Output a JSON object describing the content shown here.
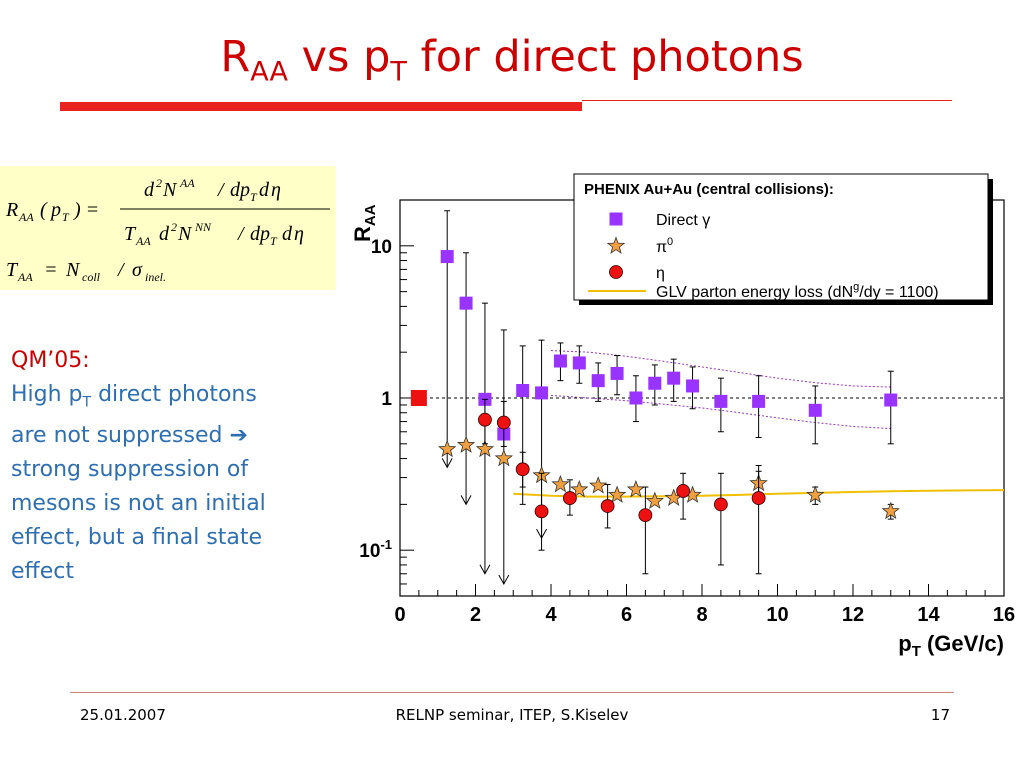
{
  "slide": {
    "title_main": "R",
    "title_sub1": "AA",
    "title_mid": " vs p",
    "title_sub2": "T",
    "title_end": " for direct photons"
  },
  "body_text": {
    "qm_label": "QM’05:",
    "line1_a": "High p",
    "line1_sub": "T",
    "line1_b": " direct photons",
    "line2": "are not suppressed ➔",
    "line3": "strong suppression of",
    "line4": "mesons is not an initial",
    "line5": "effect, but a final state",
    "line6": "effect"
  },
  "footer": {
    "date": "25.01.2007",
    "center": "RELNP seminar,  ITEP,  S.Kiselev",
    "page": "17"
  },
  "colors": {
    "title": "#cc0000",
    "body_text": "#2e6fb2",
    "direct_gamma": "#9933ff",
    "pi0": "#f0a040",
    "eta": "#ee1111",
    "glv": "#f0c000",
    "band": "#9933cc"
  },
  "chart_data": {
    "type": "scatter",
    "xlabel": "p",
    "xlabel_sub": "T",
    "xlabel_unit": " (GeV/c)",
    "ylabel": "R",
    "ylabel_sub": "AA",
    "xlim": [
      0,
      16
    ],
    "ylim": [
      0.05,
      20
    ],
    "yscale": "log",
    "x_ticks": [
      0,
      2,
      4,
      6,
      8,
      10,
      12,
      14,
      16
    ],
    "y_tick_labels": [
      "10",
      "1",
      "10-1"
    ],
    "legend_title": "PHENIX Au+Au (central collisions):",
    "legend_position": "top-right",
    "series": [
      {
        "name": "Direct γ",
        "marker": "square",
        "points": [
          {
            "x": 1.25,
            "y": 8.5,
            "ylo": 0.35,
            "yhi": 17,
            "arrow": true
          },
          {
            "x": 1.75,
            "y": 4.2,
            "ylo": 0.2,
            "yhi": 9,
            "arrow": true
          },
          {
            "x": 2.25,
            "y": 0.98,
            "ylo": 0.07,
            "yhi": 4.2,
            "arrow": true
          },
          {
            "x": 2.75,
            "y": 0.58,
            "ylo": 0.06,
            "yhi": 2.8,
            "arrow": true
          },
          {
            "x": 3.25,
            "y": 1.12,
            "ylo": 0.2,
            "yhi": 2.2
          },
          {
            "x": 3.75,
            "y": 1.08,
            "ylo": 0.12,
            "yhi": 2.4,
            "arrow": true
          },
          {
            "x": 4.25,
            "y": 1.75,
            "ylo": 1.3,
            "yhi": 2.3
          },
          {
            "x": 4.75,
            "y": 1.7,
            "ylo": 1.25,
            "yhi": 2.2
          },
          {
            "x": 5.25,
            "y": 1.3,
            "ylo": 0.95,
            "yhi": 1.7
          },
          {
            "x": 5.75,
            "y": 1.45,
            "ylo": 1.05,
            "yhi": 1.9
          },
          {
            "x": 6.25,
            "y": 1.0,
            "ylo": 0.7,
            "yhi": 1.4
          },
          {
            "x": 6.75,
            "y": 1.25,
            "ylo": 0.9,
            "yhi": 1.65
          },
          {
            "x": 7.25,
            "y": 1.35,
            "ylo": 0.95,
            "yhi": 1.8
          },
          {
            "x": 7.75,
            "y": 1.2,
            "ylo": 0.85,
            "yhi": 1.6
          },
          {
            "x": 8.5,
            "y": 0.95,
            "ylo": 0.6,
            "yhi": 1.35
          },
          {
            "x": 9.5,
            "y": 0.95,
            "ylo": 0.55,
            "yhi": 1.4
          },
          {
            "x": 11.0,
            "y": 0.83,
            "ylo": 0.5,
            "yhi": 1.2
          },
          {
            "x": 13.0,
            "y": 0.97,
            "ylo": 0.5,
            "yhi": 1.5
          }
        ]
      },
      {
        "name": "π0",
        "marker": "star",
        "points": [
          {
            "x": 1.25,
            "y": 0.46
          },
          {
            "x": 1.75,
            "y": 0.49
          },
          {
            "x": 2.25,
            "y": 0.46
          },
          {
            "x": 2.75,
            "y": 0.4
          },
          {
            "x": 3.75,
            "y": 0.31
          },
          {
            "x": 4.25,
            "y": 0.27
          },
          {
            "x": 4.75,
            "y": 0.25
          },
          {
            "x": 5.25,
            "y": 0.265
          },
          {
            "x": 5.75,
            "y": 0.23
          },
          {
            "x": 6.25,
            "y": 0.25
          },
          {
            "x": 6.75,
            "y": 0.21
          },
          {
            "x": 7.25,
            "y": 0.22
          },
          {
            "x": 7.75,
            "y": 0.23
          },
          {
            "x": 9.5,
            "y": 0.275,
            "ylo": 0.22,
            "yhi": 0.33
          },
          {
            "x": 11.0,
            "y": 0.23,
            "ylo": 0.2,
            "yhi": 0.26
          },
          {
            "x": 13.0,
            "y": 0.18,
            "ylo": 0.16,
            "yhi": 0.2
          }
        ]
      },
      {
        "name": "η",
        "marker": "circle",
        "points": [
          {
            "x": 2.25,
            "y": 0.72,
            "ylo": 0.5,
            "yhi": 0.98
          },
          {
            "x": 2.75,
            "y": 0.69,
            "ylo": 0.48,
            "yhi": 0.95
          },
          {
            "x": 3.25,
            "y": 0.34,
            "ylo": 0.26,
            "yhi": 0.44
          },
          {
            "x": 3.75,
            "y": 0.18,
            "ylo": 0.1,
            "yhi": 0.32
          },
          {
            "x": 4.5,
            "y": 0.22,
            "ylo": 0.17,
            "yhi": 0.29
          },
          {
            "x": 5.5,
            "y": 0.195,
            "ylo": 0.14,
            "yhi": 0.27
          },
          {
            "x": 6.5,
            "y": 0.17,
            "ylo": 0.07,
            "yhi": 0.26
          },
          {
            "x": 7.5,
            "y": 0.245,
            "ylo": 0.16,
            "yhi": 0.32
          },
          {
            "x": 8.5,
            "y": 0.2,
            "ylo": 0.08,
            "yhi": 0.32
          },
          {
            "x": 9.5,
            "y": 0.22,
            "ylo": 0.07,
            "yhi": 0.36
          }
        ]
      }
    ],
    "glv_curve": {
      "name": "GLV parton energy loss (dN",
      "name_sup": "g",
      "name_end": "/dy = 1100)",
      "x": [
        3.0,
        4.0,
        5.0,
        6.0,
        7.0,
        8.0,
        9.0,
        10.0,
        11.0,
        12.0,
        13.0,
        14.0,
        15.0,
        16.0
      ],
      "y": [
        0.235,
        0.228,
        0.225,
        0.225,
        0.226,
        0.228,
        0.231,
        0.235,
        0.238,
        0.241,
        0.244,
        0.246,
        0.247,
        0.248
      ]
    },
    "band_upper": {
      "x": [
        4.0,
        5.0,
        6.0,
        7.0,
        8.0,
        9.0,
        10.0,
        11.0,
        12.0,
        13.0
      ],
      "y": [
        2.05,
        2.0,
        1.88,
        1.74,
        1.6,
        1.47,
        1.35,
        1.26,
        1.2,
        1.18
      ]
    },
    "band_lower": {
      "x": [
        4.0,
        5.0,
        6.0,
        7.0,
        8.0,
        9.0,
        10.0,
        11.0,
        12.0,
        13.0
      ],
      "y": [
        1.04,
        1.0,
        0.96,
        0.91,
        0.86,
        0.8,
        0.74,
        0.69,
        0.65,
        0.63
      ]
    },
    "reference_line_y": 1.0,
    "normalization_point": {
      "x": 0.5,
      "y": 1.0
    }
  }
}
